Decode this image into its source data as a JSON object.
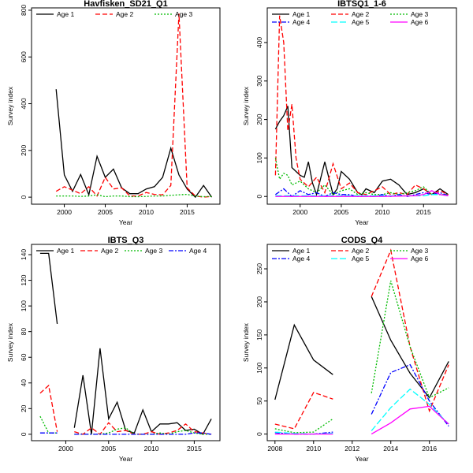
{
  "chart_data": [
    {
      "type": "line",
      "title": "Havfisken_SD21_Q1",
      "xlabel": "Year",
      "ylabel": "Survey index",
      "xlim": [
        1996,
        2019
      ],
      "ylim": [
        -30,
        810
      ],
      "xticks": [
        2000,
        2005,
        2010,
        2015
      ],
      "yticks": [
        0,
        200,
        400,
        600,
        800
      ],
      "legend": "top",
      "legend_cols": 3,
      "series": [
        {
          "name": "Age 1",
          "color": "#000000",
          "dash": "none",
          "x": [
            1999,
            2000,
            2001,
            2002,
            2003,
            2004,
            2005,
            2006,
            2007,
            2008,
            2009,
            2010,
            2011,
            2012,
            2013,
            2014,
            2015,
            2016,
            2017,
            2018
          ],
          "y": [
            462,
            95,
            25,
            97,
            10,
            175,
            85,
            120,
            40,
            15,
            15,
            35,
            45,
            85,
            210,
            95,
            35,
            0,
            50,
            0
          ]
        },
        {
          "name": "Age 2",
          "color": "#ff0000",
          "dash": "6,3",
          "x": [
            1999,
            2000,
            2001,
            2002,
            2003,
            2004,
            2005,
            2006,
            2007,
            2008,
            2009,
            2010,
            2011,
            2012,
            2013,
            2014,
            2015,
            2016,
            2017,
            2018
          ],
          "y": [
            25,
            45,
            30,
            15,
            45,
            5,
            85,
            35,
            40,
            5,
            5,
            20,
            12,
            10,
            50,
            785,
            40,
            5,
            0,
            3
          ]
        },
        {
          "name": "Age 3",
          "color": "#00bb00",
          "dash": "2,2",
          "x": [
            1999,
            2000,
            2001,
            2002,
            2003,
            2004,
            2005,
            2006,
            2007,
            2008,
            2009,
            2010,
            2011,
            2012,
            2013,
            2014,
            2015,
            2016,
            2017,
            2018
          ],
          "y": [
            5,
            5,
            5,
            3,
            5,
            10,
            2,
            5,
            5,
            2,
            2,
            3,
            5,
            5,
            8,
            10,
            12,
            5,
            2,
            3
          ]
        }
      ]
    },
    {
      "type": "line",
      "title": "IBTSQ1_1-6",
      "xlabel": "Year",
      "ylabel": "Survey index",
      "xlim": [
        1996,
        2019
      ],
      "ylim": [
        -20,
        490
      ],
      "xticks": [
        2000,
        2005,
        2010,
        2015
      ],
      "yticks": [
        0,
        100,
        200,
        300,
        400
      ],
      "legend": "top-left",
      "legend_cols": 3,
      "series": [
        {
          "name": "Age 1",
          "color": "#000000",
          "dash": "none",
          "x": [
            1997,
            1997.5,
            1998,
            1998.5,
            1999,
            2000,
            2000.5,
            2001,
            2001.5,
            2002,
            2003,
            2004,
            2004.5,
            2005,
            2006,
            2007,
            2007.5,
            2008,
            2009,
            2010,
            2011,
            2012,
            2013,
            2014,
            2015,
            2016,
            2017,
            2018
          ],
          "y": [
            175,
            195,
            210,
            235,
            75,
            55,
            50,
            90,
            35,
            5,
            90,
            5,
            20,
            65,
            45,
            10,
            5,
            20,
            10,
            40,
            45,
            30,
            5,
            10,
            20,
            5,
            20,
            5
          ]
        },
        {
          "name": "Age 2",
          "color": "#ff0000",
          "dash": "6,3",
          "x": [
            1997,
            1997.5,
            1998,
            1998.5,
            1999,
            1999.5,
            2000,
            2001,
            2002,
            2003,
            2004,
            2005,
            2006,
            2007,
            2008,
            2009,
            2010,
            2011,
            2012,
            2013,
            2014,
            2015,
            2016,
            2017,
            2018
          ],
          "y": [
            55,
            470,
            400,
            170,
            240,
            100,
            45,
            25,
            50,
            10,
            85,
            20,
            35,
            10,
            5,
            15,
            25,
            5,
            10,
            5,
            30,
            20,
            5,
            15,
            5
          ]
        },
        {
          "name": "Age 3",
          "color": "#00bb00",
          "dash": "2,2",
          "x": [
            1997,
            1997.5,
            1998,
            1998.5,
            1999,
            2000,
            2001,
            2002,
            2003,
            2004,
            2005,
            2006,
            2007,
            2008,
            2009,
            2010,
            2011,
            2012,
            2013,
            2014,
            2015,
            2016,
            2017,
            2018
          ],
          "y": [
            100,
            45,
            60,
            55,
            30,
            40,
            20,
            10,
            30,
            5,
            15,
            20,
            5,
            10,
            5,
            5,
            10,
            5,
            10,
            15,
            25,
            5,
            5,
            5
          ]
        },
        {
          "name": "Age 4",
          "color": "#0000ff",
          "dash": "6,2,2,2",
          "x": [
            1997,
            1998,
            1999,
            2000,
            2001,
            2002,
            2003,
            2004,
            2005,
            2006,
            2007,
            2008,
            2009,
            2010,
            2011,
            2012,
            2013,
            2014,
            2015,
            2016,
            2017,
            2018
          ],
          "y": [
            5,
            20,
            0,
            15,
            5,
            10,
            0,
            10,
            5,
            5,
            0,
            2,
            0,
            5,
            0,
            5,
            0,
            5,
            10,
            5,
            10,
            2
          ]
        },
        {
          "name": "Age 5",
          "color": "#00ffff",
          "dash": "8,3",
          "x": [
            1997,
            1999,
            2001,
            2003,
            2005,
            2007,
            2009,
            2011,
            2013,
            2015,
            2016,
            2017,
            2018
          ],
          "y": [
            2,
            2,
            2,
            2,
            2,
            2,
            2,
            2,
            2,
            2,
            5,
            5,
            2
          ]
        },
        {
          "name": "Age 6",
          "color": "#ff00ff",
          "dash": "none",
          "x": [
            1997,
            2000,
            2005,
            2010,
            2014,
            2015,
            2016,
            2017,
            2018
          ],
          "y": [
            0,
            0,
            0,
            0,
            2,
            5,
            15,
            5,
            2
          ]
        }
      ]
    },
    {
      "type": "line",
      "title": "IBTS_Q3",
      "xlabel": "Year",
      "ylabel": "Survey index",
      "xlim": [
        1996,
        2018
      ],
      "ylim": [
        -5,
        148
      ],
      "xticks": [
        2000,
        2005,
        2010,
        2015
      ],
      "yticks": [
        0,
        20,
        40,
        60,
        80,
        100,
        120,
        140
      ],
      "legend": "top",
      "legend_cols": 4,
      "series": [
        {
          "name": "Age 1",
          "color": "#000000",
          "dash": "none",
          "x": [
            1997,
            1998,
            1999
          ],
          "y": [
            141,
            141,
            86
          ]
        },
        {
          "name": "Age 1",
          "color": "#000000",
          "dash": "none",
          "legend": false,
          "x": [
            2001,
            2002,
            2003,
            2004,
            2005,
            2006,
            2007,
            2008,
            2009,
            2010,
            2011,
            2012,
            2013,
            2014,
            2015,
            2016,
            2017
          ],
          "y": [
            5,
            46,
            0,
            67,
            12,
            25,
            3,
            1,
            19,
            2,
            8,
            8,
            9,
            3,
            4,
            0,
            12
          ]
        },
        {
          "name": "Age 2",
          "color": "#ff0000",
          "dash": "6,3",
          "x": [
            1997,
            1998,
            1999
          ],
          "y": [
            32,
            38,
            2
          ]
        },
        {
          "name": "Age 2",
          "color": "#ff0000",
          "dash": "6,3",
          "legend": false,
          "x": [
            2001,
            2002,
            2003,
            2004,
            2005,
            2006,
            2007,
            2008,
            2009,
            2010,
            2011,
            2012,
            2013,
            2014,
            2015,
            2016,
            2017
          ],
          "y": [
            2,
            0,
            5,
            0,
            9,
            2,
            3,
            0,
            0,
            2,
            0,
            1,
            3,
            8,
            2,
            1,
            0
          ]
        },
        {
          "name": "Age 3",
          "color": "#00bb00",
          "dash": "2,2",
          "x": [
            1997,
            1998,
            1999
          ],
          "y": [
            14,
            1,
            1
          ]
        },
        {
          "name": "Age 3",
          "color": "#00bb00",
          "dash": "2,2",
          "legend": false,
          "x": [
            2001,
            2002,
            2003,
            2004,
            2005,
            2006,
            2007,
            2008,
            2009,
            2010,
            2011,
            2012,
            2013,
            2014,
            2015,
            2016,
            2017
          ],
          "y": [
            0,
            0,
            0,
            0,
            1,
            4,
            5,
            0,
            0,
            0,
            1,
            0,
            2,
            3,
            1,
            0,
            0
          ]
        },
        {
          "name": "Age 4",
          "color": "#0000ff",
          "dash": "6,2,2,2",
          "x": [
            1997,
            1998,
            1999
          ],
          "y": [
            1,
            1,
            1
          ]
        },
        {
          "name": "Age 4",
          "color": "#0000ff",
          "dash": "6,2,2,2",
          "legend": false,
          "x": [
            2001,
            2002,
            2003,
            2004,
            2005,
            2006,
            2007,
            2008,
            2009,
            2010,
            2011,
            2012,
            2013,
            2014,
            2015,
            2016,
            2017
          ],
          "y": [
            0,
            0,
            0,
            0,
            0,
            0,
            0,
            0,
            0,
            0,
            0,
            0,
            0,
            0,
            1,
            1,
            0
          ]
        }
      ]
    },
    {
      "type": "line",
      "title": "CODS_Q4",
      "xlabel": "Year",
      "ylabel": "Survey index",
      "xlim": [
        2007.6,
        2017.4
      ],
      "ylim": [
        -10,
        287
      ],
      "xticks": [
        2008,
        2010,
        2012,
        2014,
        2016
      ],
      "yticks": [
        0,
        50,
        100,
        150,
        200,
        250
      ],
      "legend": "top-right",
      "legend_cols": 3,
      "series": [
        {
          "name": "Age 1",
          "color": "#000000",
          "dash": "none",
          "x": [
            2008,
            2009,
            2010,
            2011
          ],
          "y": [
            52,
            165,
            112,
            90
          ]
        },
        {
          "name": "Age 1",
          "color": "#000000",
          "dash": "none",
          "legend": false,
          "x": [
            2013,
            2014,
            2015,
            2016,
            2017
          ],
          "y": [
            208,
            142,
            92,
            55,
            110
          ]
        },
        {
          "name": "Age 2",
          "color": "#ff0000",
          "dash": "6,3",
          "x": [
            2008,
            2009,
            2010,
            2011
          ],
          "y": [
            15,
            8,
            63,
            53
          ]
        },
        {
          "name": "Age 2",
          "color": "#ff0000",
          "dash": "6,3",
          "legend": false,
          "x": [
            2013,
            2014,
            2015,
            2016,
            2017
          ],
          "y": [
            208,
            278,
            132,
            35,
            105
          ]
        },
        {
          "name": "Age 3",
          "color": "#00bb00",
          "dash": "2,2",
          "x": [
            2008,
            2009,
            2010,
            2011
          ],
          "y": [
            8,
            2,
            3,
            23
          ]
        },
        {
          "name": "Age 3",
          "color": "#00bb00",
          "dash": "2,2",
          "legend": false,
          "x": [
            2013,
            2014,
            2015,
            2016,
            2017
          ],
          "y": [
            62,
            232,
            132,
            55,
            70
          ]
        },
        {
          "name": "Age 4",
          "color": "#0000ff",
          "dash": "6,2,2,2",
          "x": [
            2008,
            2009,
            2010,
            2011
          ],
          "y": [
            2,
            0,
            0,
            3
          ]
        },
        {
          "name": "Age 4",
          "color": "#0000ff",
          "dash": "6,2,2,2",
          "legend": false,
          "x": [
            2013,
            2014,
            2015,
            2016,
            2017
          ],
          "y": [
            30,
            93,
            105,
            50,
            12
          ]
        },
        {
          "name": "Age 5",
          "color": "#00ffff",
          "dash": "8,3",
          "x": [
            2008,
            2009,
            2010,
            2011
          ],
          "y": [
            3,
            1,
            0,
            1
          ]
        },
        {
          "name": "Age 5",
          "color": "#00ffff",
          "dash": "8,3",
          "legend": false,
          "x": [
            2013,
            2014,
            2015,
            2016,
            2017
          ],
          "y": [
            5,
            40,
            68,
            45,
            15
          ]
        },
        {
          "name": "Age 6",
          "color": "#ff00ff",
          "dash": "none",
          "x": [
            2008,
            2009,
            2010,
            2011
          ],
          "y": [
            0,
            0,
            0,
            0
          ]
        },
        {
          "name": "Age 6",
          "color": "#ff00ff",
          "dash": "none",
          "legend": false,
          "x": [
            2013,
            2014,
            2015,
            2016,
            2017
          ],
          "y": [
            0,
            17,
            38,
            42,
            15
          ]
        }
      ]
    }
  ]
}
